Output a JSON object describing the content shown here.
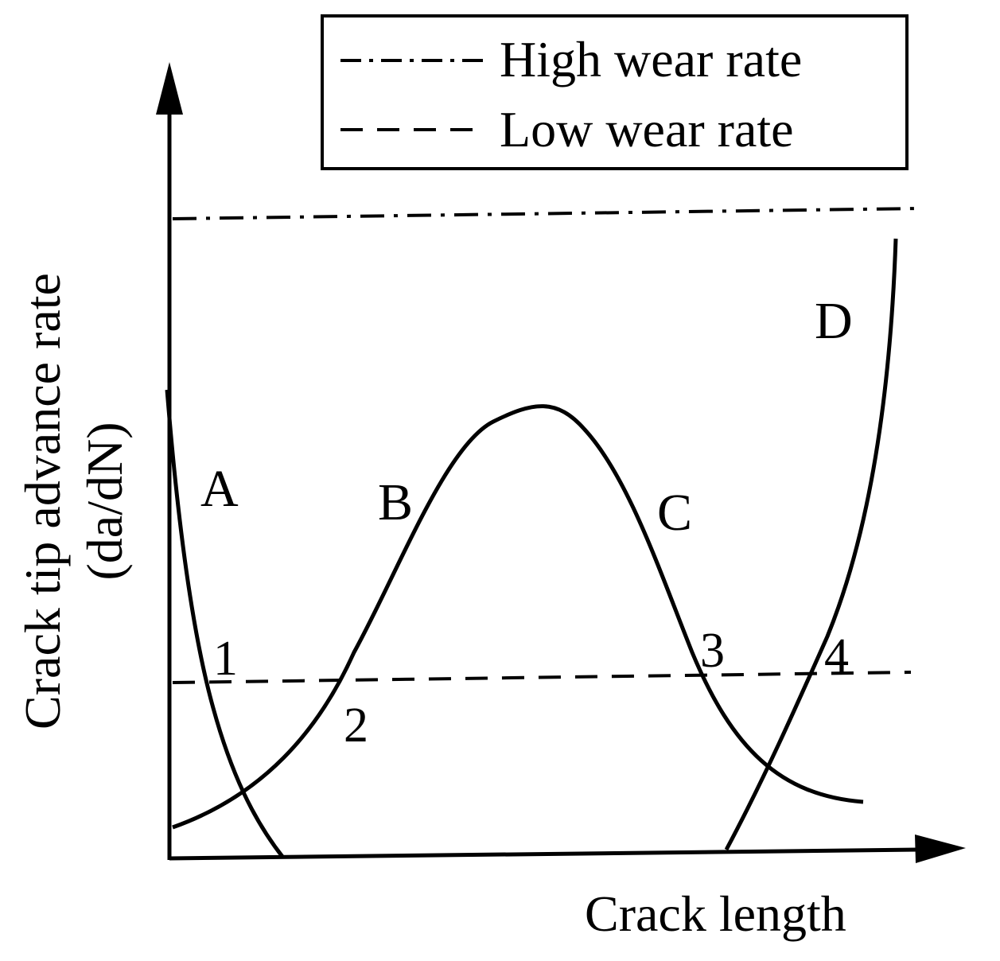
{
  "diagram": {
    "y_axis_title_line1": "Crack tip advance rate",
    "y_axis_title_line2": "(da/dN)",
    "x_axis_title": "Crack length",
    "legend": {
      "items": [
        {
          "label": "High wear rate",
          "style": "dash-dot"
        },
        {
          "label": "Low wear rate",
          "style": "dashed"
        }
      ]
    },
    "curve_labels": {
      "A": "A",
      "B": "B",
      "C": "C",
      "D": "D"
    },
    "intersection_labels": {
      "p1": "1",
      "p2": "2",
      "p3": "3",
      "p4": "4"
    },
    "colors": {
      "ink": "#000000",
      "background": "#ffffff"
    }
  }
}
